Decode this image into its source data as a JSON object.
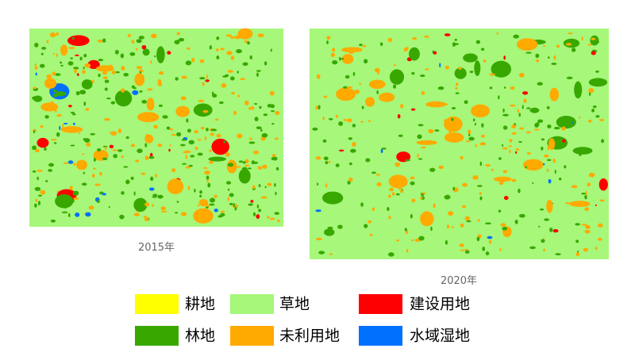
{
  "maps": [
    {
      "caption": "2015年"
    },
    {
      "caption": "2020年"
    }
  ],
  "legend": [
    {
      "label": "耕地",
      "color": "#ffff00"
    },
    {
      "label": "草地",
      "color": "#a6f77a"
    },
    {
      "label": "建设用地",
      "color": "#ff0000"
    },
    {
      "label": "林地",
      "color": "#38a800"
    },
    {
      "label": "未利用地",
      "color": "#ffaa00"
    },
    {
      "label": "水域湿地",
      "color": "#0070ff"
    }
  ]
}
